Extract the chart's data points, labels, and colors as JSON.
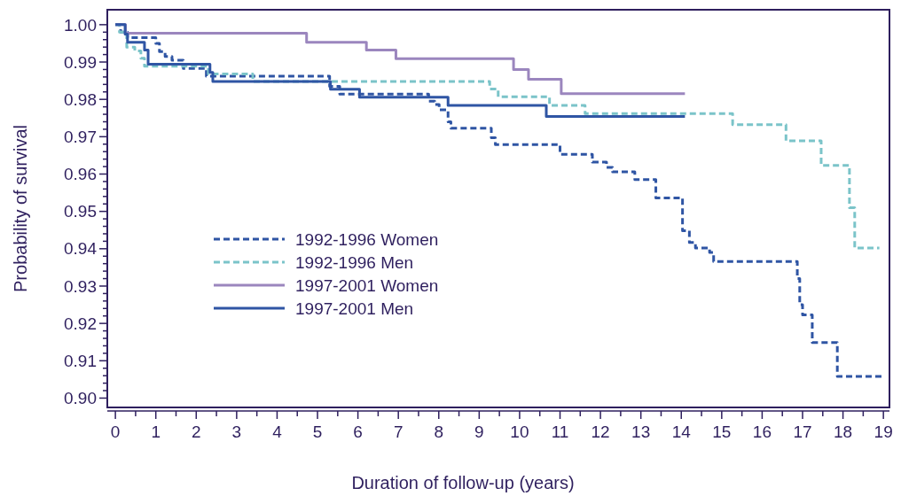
{
  "chart_data": {
    "type": "step",
    "xlabel": "Duration of follow-up (years)",
    "ylabel": "Probability of survival",
    "xlim": [
      -0.2,
      19.15
    ],
    "ylim": [
      0.8975,
      1.004
    ],
    "xticks": [
      0,
      {
        "value": 0.5,
        "label": null
      },
      1,
      {
        "value": 1.5,
        "label": null
      },
      2,
      {
        "value": 2.5,
        "label": null
      },
      3,
      {
        "value": 3.5,
        "label": null
      },
      4,
      {
        "value": 4.5,
        "label": null
      },
      5,
      {
        "value": 5.5,
        "label": null
      },
      6,
      {
        "value": 6.5,
        "label": null
      },
      7,
      {
        "value": 7.5,
        "label": null
      },
      8,
      {
        "value": 8.5,
        "label": null
      },
      9,
      {
        "value": 9.5,
        "label": null
      },
      10,
      {
        "value": 10.5,
        "label": null
      },
      11,
      {
        "value": 11.5,
        "label": null
      },
      12,
      {
        "value": 12.5,
        "label": null
      },
      13,
      {
        "value": 13.5,
        "label": null
      },
      14,
      {
        "value": 14.5,
        "label": null
      },
      15,
      {
        "value": 15.5,
        "label": null
      },
      16,
      {
        "value": 16.5,
        "label": null
      },
      17,
      {
        "value": 17.5,
        "label": null
      },
      18,
      {
        "value": 18.5,
        "label": null
      },
      19
    ],
    "yticks": [
      {
        "value": 0.9,
        "label": "0.90"
      },
      {
        "value": 0.902,
        "label": null
      },
      {
        "value": 0.904,
        "label": null
      },
      {
        "value": 0.906,
        "label": null
      },
      {
        "value": 0.908,
        "label": null
      },
      0.91,
      {
        "value": 0.912,
        "label": null
      },
      {
        "value": 0.914,
        "label": null
      },
      {
        "value": 0.916,
        "label": null
      },
      {
        "value": 0.918,
        "label": null
      },
      0.92,
      {
        "value": 0.922,
        "label": null
      },
      {
        "value": 0.924,
        "label": null
      },
      {
        "value": 0.926,
        "label": null
      },
      {
        "value": 0.928,
        "label": null
      },
      0.93,
      {
        "value": 0.932,
        "label": null
      },
      {
        "value": 0.934,
        "label": null
      },
      {
        "value": 0.936,
        "label": null
      },
      {
        "value": 0.938,
        "label": null
      },
      0.94,
      {
        "value": 0.942,
        "label": null
      },
      {
        "value": 0.944,
        "label": null
      },
      {
        "value": 0.946,
        "label": null
      },
      {
        "value": 0.948,
        "label": null
      },
      0.95,
      {
        "value": 0.952,
        "label": null
      },
      {
        "value": 0.954,
        "label": null
      },
      {
        "value": 0.956,
        "label": null
      },
      {
        "value": 0.958,
        "label": null
      },
      0.96,
      {
        "value": 0.962,
        "label": null
      },
      {
        "value": 0.964,
        "label": null
      },
      {
        "value": 0.966,
        "label": null
      },
      {
        "value": 0.968,
        "label": null
      },
      0.97,
      {
        "value": 0.972,
        "label": null
      },
      {
        "value": 0.974,
        "label": null
      },
      {
        "value": 0.976,
        "label": null
      },
      {
        "value": 0.978,
        "label": null
      },
      0.98,
      {
        "value": 0.982,
        "label": null
      },
      {
        "value": 0.984,
        "label": null
      },
      {
        "value": 0.986,
        "label": null
      },
      {
        "value": 0.988,
        "label": null
      },
      0.99,
      {
        "value": 0.992,
        "label": null
      },
      {
        "value": 0.994,
        "label": null
      },
      {
        "value": 0.996,
        "label": null
      },
      {
        "value": 0.998,
        "label": null
      },
      {
        "value": 1.0,
        "label": "1.00"
      }
    ],
    "grid": false,
    "legend": "bottom left",
    "series": [
      {
        "name": "1992-1996 Women",
        "color": "#2f55a4",
        "line_style": "dashed",
        "x": [
          0,
          0.13,
          0.3,
          1.0,
          1.09,
          1.23,
          1.4,
          1.68,
          2.25,
          5.3,
          5.55,
          7.75,
          7.9,
          8.01,
          8.23,
          8.3,
          9.3,
          9.4,
          11.0,
          11.8,
          12.15,
          12.3,
          12.85,
          13.37,
          14.03,
          14.2,
          14.35,
          14.7,
          14.8,
          16.87,
          16.93,
          17.0,
          17.24,
          17.86,
          19.0
        ],
        "values": [
          1.0,
          0.998,
          0.9965,
          0.995,
          0.9928,
          0.9915,
          0.9905,
          0.9883,
          0.9862,
          0.9835,
          0.9814,
          0.9795,
          0.9786,
          0.9772,
          0.974,
          0.9723,
          0.9697,
          0.9679,
          0.9653,
          0.9632,
          0.9618,
          0.9606,
          0.9585,
          0.9536,
          0.9448,
          0.9417,
          0.9402,
          0.939,
          0.9366,
          0.932,
          0.925,
          0.9223,
          0.9149,
          0.9058,
          0.9058
        ]
      },
      {
        "name": "1992-1996 Men",
        "color": "#7bc4c9",
        "line_style": "dashed",
        "x": [
          0,
          0.1,
          0.28,
          0.48,
          0.63,
          0.72,
          2.3,
          3.4,
          9.26,
          9.47,
          10.74,
          11.62,
          15.27,
          16.59,
          17.46,
          18.16,
          18.29,
          18.9
        ],
        "values": [
          1.0,
          0.998,
          0.994,
          0.993,
          0.991,
          0.9889,
          0.9868,
          0.9848,
          0.9828,
          0.9807,
          0.9784,
          0.9762,
          0.9732,
          0.9689,
          0.9623,
          0.951,
          0.9402,
          0.9402
        ]
      },
      {
        "name": "1997-2001 Women",
        "color": "#9b86be",
        "line_style": "solid",
        "x": [
          0,
          0.25,
          4.73,
          6.21,
          6.94,
          9.85,
          10.22,
          11.03,
          14.09
        ],
        "values": [
          1.0,
          0.9977,
          0.9953,
          0.9932,
          0.9909,
          0.988,
          0.9854,
          0.9815,
          0.9815
        ]
      },
      {
        "name": "1997-2001 Men",
        "color": "#2f55a4",
        "line_style": "solid",
        "x": [
          0,
          0.24,
          0.3,
          0.72,
          0.81,
          2.34,
          2.41,
          5.32,
          6.04,
          8.23,
          10.66,
          14.09
        ],
        "values": [
          1.0,
          0.9975,
          0.9953,
          0.9932,
          0.9894,
          0.9872,
          0.9848,
          0.9827,
          0.9806,
          0.9784,
          0.9754,
          0.9754
        ]
      }
    ]
  }
}
